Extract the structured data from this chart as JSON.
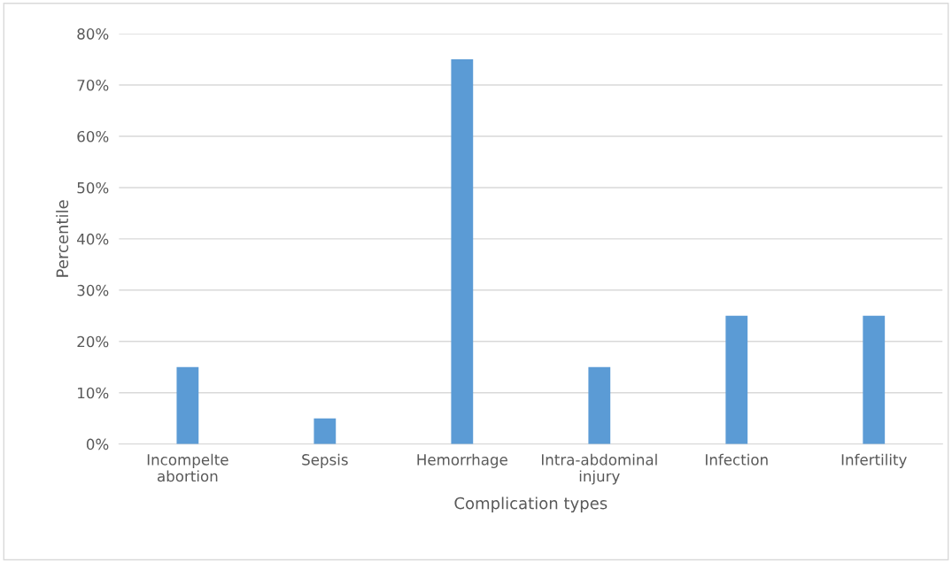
{
  "chart_data": {
    "type": "bar",
    "xlabel": "Complication types",
    "ylabel": "Percentile",
    "categories": [
      "Incompelte abortion",
      "Sepsis",
      "Hemorrhage",
      "Intra-abdominal injury",
      "Infection",
      "Infertility"
    ],
    "values": [
      15,
      5,
      75,
      15,
      25,
      25
    ],
    "color": "#5b9bd5",
    "ylim": [
      0,
      80
    ],
    "yticks": [
      {
        "value": 0,
        "label": "0%"
      },
      {
        "value": 10,
        "label": "10%"
      },
      {
        "value": 20,
        "label": "20%"
      },
      {
        "value": 30,
        "label": "30%"
      },
      {
        "value": 40,
        "label": "40%"
      },
      {
        "value": 50,
        "label": "50%"
      },
      {
        "value": 60,
        "label": "60%"
      },
      {
        "value": 70,
        "label": "70%"
      },
      {
        "value": 80,
        "label": "80%"
      }
    ],
    "grid": "y"
  }
}
